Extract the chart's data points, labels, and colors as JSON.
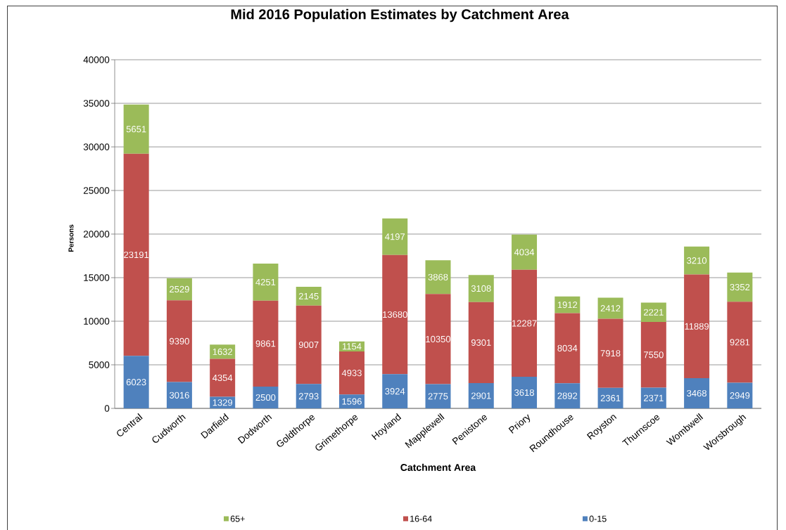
{
  "chart_data": {
    "type": "bar",
    "title": "Mid 2016 Population Estimates by Catchment Area",
    "xlabel": "Catchment Area",
    "ylabel": "Persons",
    "categories": [
      "Central",
      "Cudworth",
      "Darfield",
      "Dodworth",
      "Goldthorpe",
      "Grimethorpe",
      "Hoyland",
      "Mapplewell",
      "Penistone",
      "Priory",
      "Roundhouse",
      "Royston",
      "Thurnscoe",
      "Wombwell",
      "Worsbrough"
    ],
    "series": [
      {
        "name": "0-15",
        "color": "#4f81bd",
        "values": [
          6023,
          3016,
          1329,
          2500,
          2793,
          1596,
          3924,
          2775,
          2901,
          3618,
          2892,
          2361,
          2371,
          3468,
          2949
        ]
      },
      {
        "name": "16-64",
        "color": "#c0504d",
        "values": [
          23191,
          9390,
          4354,
          9861,
          9007,
          4933,
          13680,
          10350,
          9301,
          12287,
          8034,
          7918,
          7550,
          11889,
          9281
        ]
      },
      {
        "name": "65+",
        "color": "#9bbb59",
        "values": [
          5651,
          2529,
          1632,
          4251,
          2145,
          1154,
          4197,
          3868,
          3108,
          4034,
          1912,
          2412,
          2221,
          3210,
          3352
        ]
      }
    ],
    "stacked": true,
    "ylim": [
      0,
      40000
    ],
    "yticks": [
      0,
      5000,
      10000,
      15000,
      20000,
      25000,
      30000,
      35000,
      40000
    ],
    "grid": "y",
    "legend": "bottom",
    "data_labels": true
  }
}
